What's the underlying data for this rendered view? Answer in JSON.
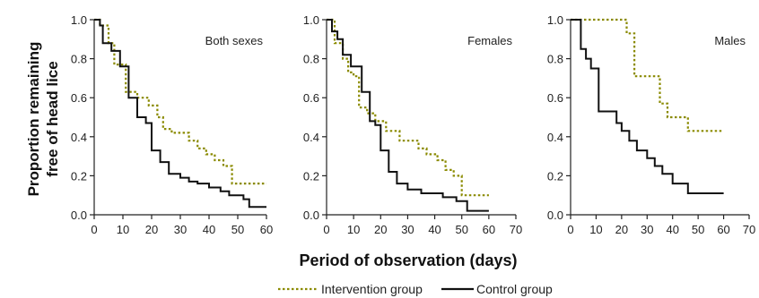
{
  "colors": {
    "intervention": "#8a8a00",
    "control": "#111111"
  },
  "chart_data": {
    "type": "line",
    "ylabel_line1": "Proportion remaining",
    "ylabel_line2": "free of head lice",
    "xlabel": "Period of observation (days)",
    "ylim": [
      0,
      1.0
    ],
    "yticks": [
      "0.0",
      "0.2",
      "0.4",
      "0.6",
      "0.8",
      "1.0"
    ],
    "xticks": [
      "0",
      "10",
      "20",
      "30",
      "40",
      "50",
      "60",
      "70"
    ],
    "legend": {
      "intervention": "Intervention group",
      "control": "Control group"
    },
    "panels": [
      {
        "title": "Both sexes",
        "xlim": [
          0,
          60
        ],
        "xticks": [
          "0",
          "10",
          "20",
          "30",
          "40",
          "50",
          "60"
        ],
        "series": [
          {
            "name": "Intervention group",
            "style": "dotted",
            "x": [
              0,
              2,
              5,
              7,
              11,
              15,
              19,
              22,
              24,
              27,
              33,
              36,
              39,
              42,
              45,
              48,
              60
            ],
            "y": [
              1.0,
              0.97,
              0.88,
              0.77,
              0.63,
              0.6,
              0.56,
              0.5,
              0.44,
              0.42,
              0.38,
              0.34,
              0.31,
              0.28,
              0.25,
              0.16,
              0.16
            ]
          },
          {
            "name": "Control group",
            "style": "solid",
            "x": [
              0,
              2,
              3,
              6,
              9,
              12,
              15,
              18,
              20,
              23,
              26,
              30,
              33,
              36,
              40,
              44,
              47,
              52,
              54,
              60
            ],
            "y": [
              1.0,
              0.97,
              0.88,
              0.84,
              0.76,
              0.6,
              0.5,
              0.47,
              0.33,
              0.27,
              0.21,
              0.19,
              0.17,
              0.16,
              0.14,
              0.12,
              0.1,
              0.08,
              0.04,
              0.04
            ]
          }
        ]
      },
      {
        "title": "Females",
        "xlim": [
          0,
          70
        ],
        "xticks": [
          "0",
          "10",
          "20",
          "30",
          "40",
          "50",
          "60",
          "70"
        ],
        "series": [
          {
            "name": "Intervention group",
            "style": "dotted",
            "x": [
              0,
              3,
              6,
              8,
              10,
              12,
              15,
              18,
              22,
              27,
              34,
              37,
              41,
              44,
              47,
              50,
              60
            ],
            "y": [
              1.0,
              0.88,
              0.8,
              0.73,
              0.71,
              0.55,
              0.52,
              0.48,
              0.43,
              0.38,
              0.34,
              0.31,
              0.28,
              0.23,
              0.2,
              0.1,
              0.1
            ]
          },
          {
            "name": "Control group",
            "style": "solid",
            "x": [
              0,
              2,
              4,
              6,
              9,
              13,
              16,
              18,
              20,
              23,
              26,
              30,
              35,
              43,
              48,
              52,
              60
            ],
            "y": [
              1.0,
              0.94,
              0.9,
              0.82,
              0.76,
              0.63,
              0.48,
              0.46,
              0.33,
              0.22,
              0.16,
              0.13,
              0.11,
              0.09,
              0.07,
              0.02,
              0.02
            ]
          }
        ]
      },
      {
        "title": "Males",
        "xlim": [
          0,
          70
        ],
        "xticks": [
          "0",
          "10",
          "20",
          "30",
          "40",
          "50",
          "60",
          "70"
        ],
        "series": [
          {
            "name": "Intervention group",
            "style": "dotted",
            "x": [
              0,
              20,
              22,
              25,
              35,
              38,
              42,
              46,
              60
            ],
            "y": [
              1.0,
              1.0,
              0.93,
              0.71,
              0.57,
              0.5,
              0.5,
              0.43,
              0.43
            ]
          },
          {
            "name": "Control group",
            "style": "solid",
            "x": [
              0,
              4,
              6,
              8,
              11,
              18,
              20,
              23,
              26,
              30,
              33,
              36,
              40,
              46,
              60
            ],
            "y": [
              1.0,
              0.85,
              0.8,
              0.75,
              0.53,
              0.47,
              0.43,
              0.38,
              0.33,
              0.29,
              0.25,
              0.21,
              0.16,
              0.11,
              0.11
            ]
          }
        ]
      }
    ]
  }
}
